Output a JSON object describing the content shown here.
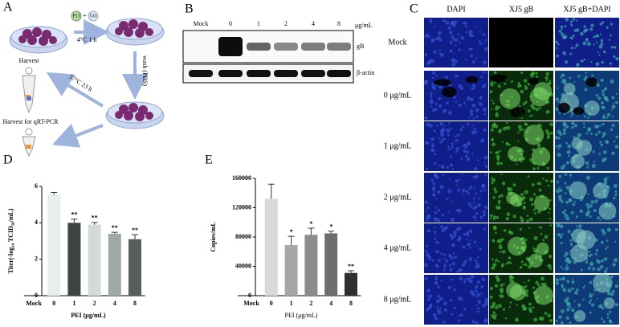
{
  "panel_labels": [
    "A",
    "B",
    "C",
    "D",
    "E"
  ],
  "schematic": {
    "reagent_1": "P13",
    "plus": "+",
    "reagent_2": "GO",
    "step_1": "4°C 1 h",
    "step_2": "wash (PBS)",
    "step_3": "37°C 23 h",
    "harvest": "Harvest",
    "harvest_qrt": "Harvest for qRT-PCR"
  },
  "western_blot": {
    "lanes": [
      "Mock",
      "0",
      "1",
      "2",
      "4",
      "8"
    ],
    "unit": "μg/mL",
    "bands": [
      "gB",
      "β-actin"
    ]
  },
  "imaging": {
    "columns": [
      "DAPI",
      "XJ5 gB",
      "XJ5 gB+DAPI"
    ],
    "rows": [
      "Mock",
      "0 μg/mL",
      "1 μg/mL",
      "2 μg/mL",
      "4 μg/mL",
      "8 μg/mL"
    ]
  },
  "chart_data": [
    {
      "type": "bar",
      "y_label": "Titer(-log₁₀ TCID₅₀/mL)",
      "x_label": "PEI (μg/mL)",
      "categories": [
        "Mock",
        "0",
        "1",
        "2",
        "4",
        "8"
      ],
      "values": [
        null,
        5.55,
        4.0,
        3.9,
        3.4,
        3.1
      ],
      "errors": [
        null,
        0.12,
        0.2,
        0.12,
        0.08,
        0.25
      ],
      "significance": [
        null,
        null,
        "**",
        "**",
        "**",
        "**"
      ],
      "colors": [
        null,
        "#e8eeee",
        "#3f4545",
        "#d2dada",
        "#9fa7a7",
        "#575d5d"
      ],
      "ylim": [
        0,
        6
      ],
      "yticks": [
        0,
        2,
        4,
        6
      ]
    },
    {
      "type": "bar",
      "y_label": "Copies/mL",
      "x_label": "PEI (μg/mL)",
      "categories": [
        "Mock",
        "0",
        "1",
        "2",
        "4",
        "8"
      ],
      "values": [
        null,
        132000,
        69000,
        83000,
        85000,
        31000
      ],
      "errors": [
        null,
        20000,
        12000,
        9000,
        3000,
        3000
      ],
      "significance": [
        null,
        null,
        "*",
        "*",
        "*",
        "**"
      ],
      "colors": [
        null,
        "#d9d9d9",
        "#a6a6a6",
        "#8c8c8c",
        "#6e6e6e",
        "#2f2f2f"
      ],
      "ylim": [
        0,
        160000
      ],
      "yticks": [
        0,
        40000,
        80000,
        120000,
        160000
      ]
    }
  ]
}
